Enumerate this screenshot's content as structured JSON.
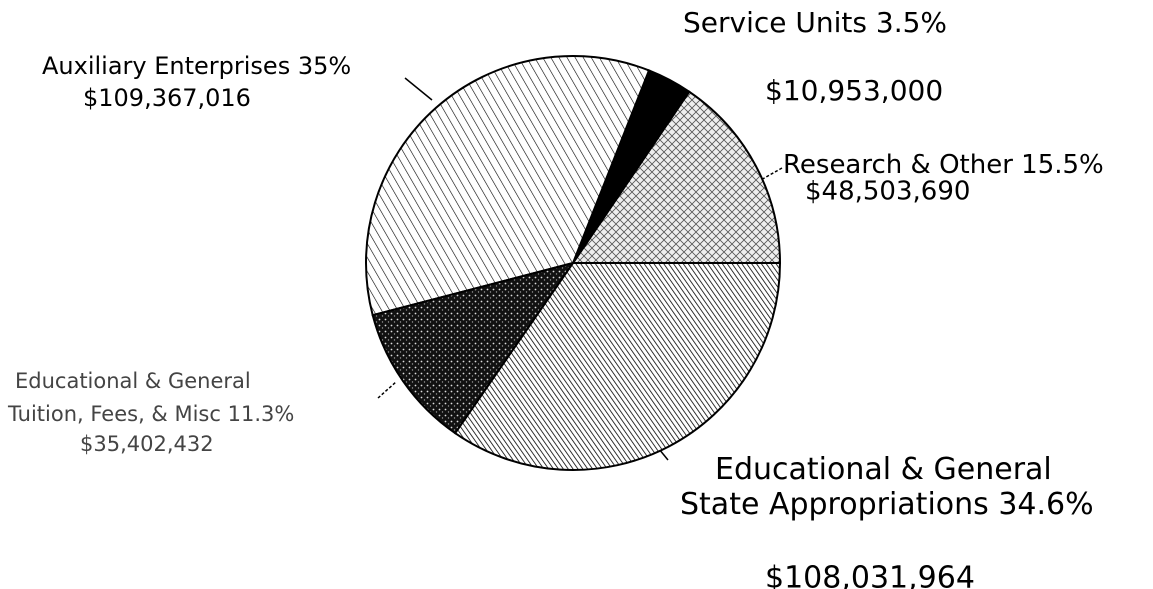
{
  "chart_data": {
    "type": "pie",
    "categories": [
      [
        "Research & Other"
      ],
      [
        "Service Units"
      ],
      [
        "Auxiliary Enterprises"
      ],
      [
        "Educational & General",
        "Tuition, Fees, & Misc"
      ],
      [
        "Educational & General",
        "State Appropriations"
      ]
    ],
    "values": [
      15.5,
      3.5,
      35,
      11.3,
      34.6
    ],
    "value_labels": [
      "15.5%",
      "3.5%",
      "35%",
      "11.3%",
      "34.6%"
    ],
    "amounts": [
      48503690,
      10953000,
      109367016,
      35402432,
      108031964
    ],
    "amount_labels": [
      "$48,503,690",
      "$10,953,000",
      "$109,367,016",
      "$35,402,432",
      "$108,031,964"
    ]
  }
}
